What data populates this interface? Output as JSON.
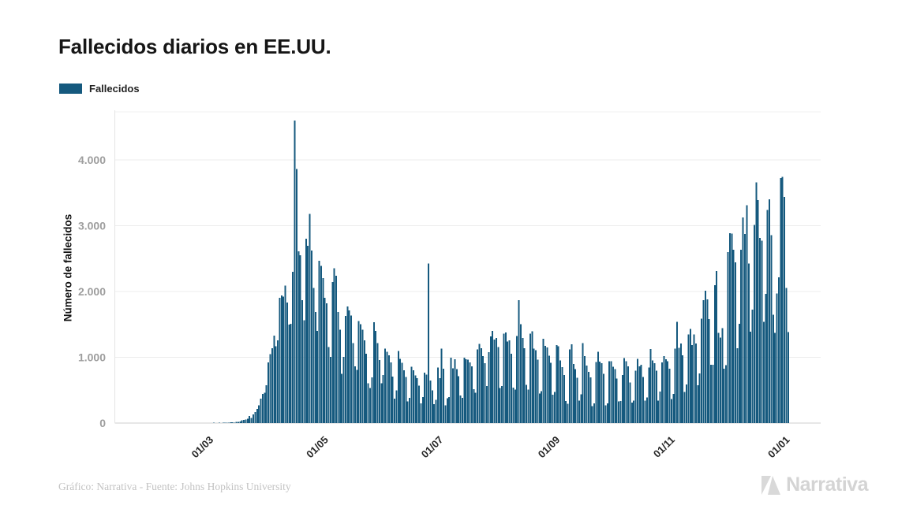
{
  "title": "Fallecidos diarios en EE.UU.",
  "legend": {
    "label": "Fallecidos",
    "swatch_color": "#15597e"
  },
  "footer": {
    "credit": "Gráfico: Narrativa - Fuente: Johns Hopkins University",
    "brand": "Narrativa"
  },
  "colors": {
    "bar": "#15597e",
    "grid": "#ececec",
    "zero_line": "#cfcfcf",
    "axis_line": "#e4e4e4",
    "y_tick_label": "#9d9d9d",
    "x_tick_label": "#262626",
    "title": "#161616",
    "footer_text": "#c3c3c3",
    "brand": "#d4d4d4"
  },
  "chart_data": {
    "type": "bar",
    "title": "Fallecidos diarios en EE.UU.",
    "series_name": "Fallecidos",
    "xlabel": "",
    "ylabel": "Número de fallecidos",
    "ylim": [
      0,
      4700
    ],
    "grid": "horizontal",
    "legend_position": "top-left",
    "x_frequency": "daily",
    "x_range": {
      "start": "2020-01-22",
      "end": "2021-01-02"
    },
    "yticks": [
      {
        "value": 0,
        "label": "0"
      },
      {
        "value": 1000,
        "label": "1.000"
      },
      {
        "value": 2000,
        "label": "2.000"
      },
      {
        "value": 3000,
        "label": "3.000"
      },
      {
        "value": 4000,
        "label": "4.000"
      }
    ],
    "xticks": [
      {
        "index": 39,
        "label": "01/03"
      },
      {
        "index": 100,
        "label": "01/05"
      },
      {
        "index": 161,
        "label": "01/07"
      },
      {
        "index": 223,
        "label": "01/09"
      },
      {
        "index": 284,
        "label": "01/11"
      },
      {
        "index": 345,
        "label": "01/01"
      }
    ],
    "values": [
      0,
      0,
      0,
      0,
      0,
      0,
      0,
      0,
      0,
      0,
      0,
      0,
      0,
      0,
      0,
      0,
      0,
      0,
      0,
      0,
      0,
      0,
      0,
      0,
      0,
      0,
      0,
      0,
      0,
      0,
      0,
      0,
      0,
      0,
      0,
      0,
      0,
      0,
      1,
      1,
      1,
      4,
      3,
      2,
      4,
      3,
      5,
      7,
      4,
      8,
      11,
      10,
      6,
      21,
      18,
      23,
      41,
      48,
      55,
      63,
      110,
      75,
      131,
      168,
      217,
      268,
      372,
      445,
      462,
      572,
      921,
      1049,
      1135,
      1331,
      1165,
      1255,
      1906,
      1940,
      1922,
      2087,
      1831,
      1500,
      1509,
      2299,
      4600,
      3860,
      2609,
      2550,
      1866,
      1561,
      2804,
      2693,
      3179,
      2622,
      2054,
      1687,
      1400,
      2470,
      2390,
      2201,
      1902,
      1823,
      1154,
      1008,
      2144,
      2353,
      2239,
      1687,
      1422,
      750,
      1008,
      1630,
      1774,
      1715,
      1635,
      1218,
      865,
      808,
      1552,
      1501,
      1418,
      1260,
      1054,
      605,
      532,
      697,
      1535,
      1399,
      1218,
      960,
      605,
      730,
      1134,
      1083,
      1031,
      922,
      709,
      373,
      497,
      1093,
      977,
      918,
      800,
      701,
      329,
      383,
      858,
      800,
      722,
      684,
      566,
      302,
      397,
      767,
      739,
      2425,
      648,
      500,
      288,
      356,
      845,
      685,
      1131,
      826,
      267,
      376,
      395,
      993,
      834,
      969,
      820,
      715,
      420,
      381,
      993,
      973,
      963,
      925,
      862,
      516,
      459,
      1117,
      1205,
      1140,
      1019,
      908,
      560,
      1078,
      1320,
      1403,
      1268,
      1296,
      1154,
      532,
      561,
      1362,
      1380,
      1241,
      1260,
      1052,
      540,
      510,
      1324,
      1868,
      1504,
      1292,
      1136,
      578,
      511,
      1358,
      1397,
      1131,
      1108,
      966,
      447,
      486,
      1279,
      1174,
      1148,
      1027,
      916,
      430,
      474,
      1187,
      1168,
      955,
      848,
      730,
      336,
      292,
      1120,
      1197,
      900,
      820,
      691,
      342,
      438,
      1214,
      1018,
      877,
      776,
      696,
      258,
      297,
      929,
      1086,
      934,
      911,
      746,
      267,
      297,
      940,
      942,
      857,
      823,
      679,
      328,
      335,
      730,
      989,
      942,
      860,
      617,
      309,
      342,
      796,
      977,
      861,
      885,
      702,
      340,
      388,
      846,
      1123,
      954,
      911,
      796,
      340,
      477,
      925,
      1016,
      971,
      940,
      826,
      368,
      445,
      1130,
      1541,
      1143,
      1210,
      1032,
      474,
      589,
      1347,
      1431,
      1184,
      1350,
      1210,
      576,
      753,
      1587,
      1869,
      2015,
      1878,
      1579,
      885,
      889,
      2097,
      2313,
      1374,
      1302,
      1445,
      827,
      878,
      2597,
      2885,
      2879,
      2637,
      2445,
      1138,
      1508,
      2634,
      3124,
      2873,
      3309,
      2427,
      1389,
      1727,
      3015,
      3656,
      3389,
      2814,
      2771,
      1539,
      1962,
      3239,
      3401,
      2856,
      1645,
      1372,
      1970,
      2216,
      3725,
      3744,
      3440,
      2051,
      1385
    ]
  }
}
